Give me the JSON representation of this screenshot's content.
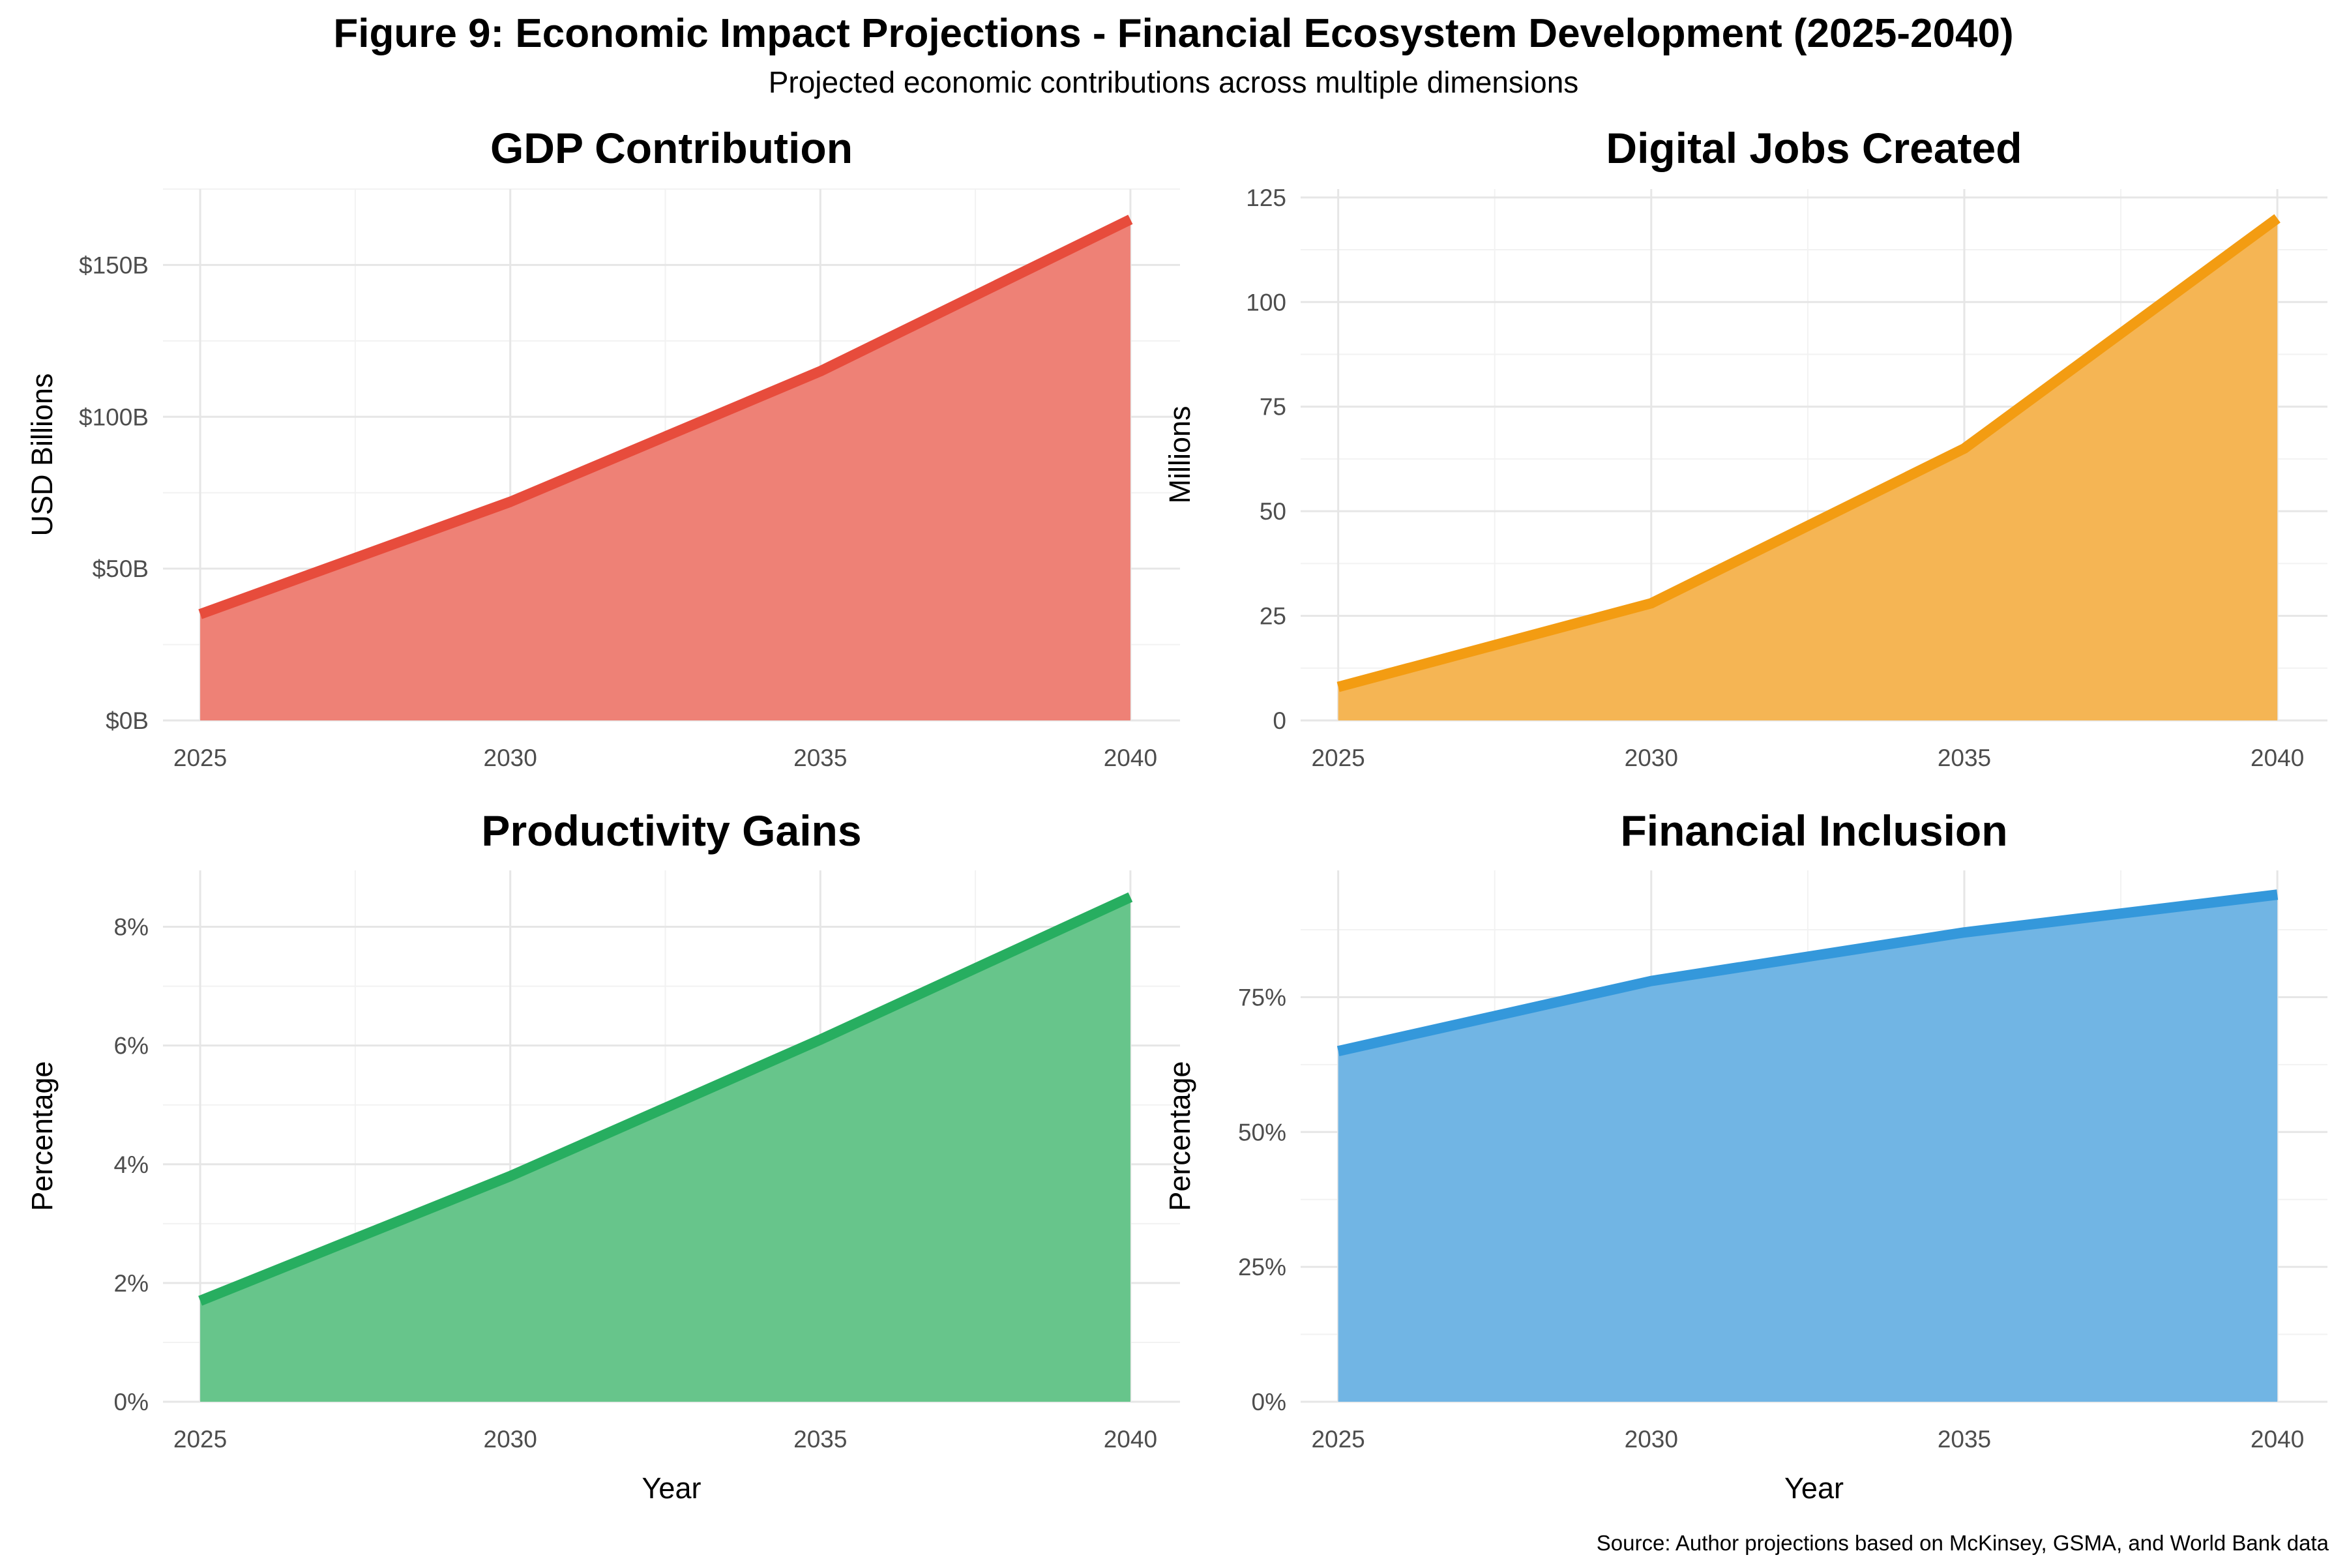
{
  "figure": {
    "title": "Figure 9: Economic Impact Projections - Financial Ecosystem Development (2025-2040)",
    "subtitle": "Projected economic contributions across multiple dimensions",
    "caption": "Source: Author projections based on McKinsey, GSMA, and World Bank data"
  },
  "chart_data": [
    {
      "type": "area",
      "title": "GDP Contribution",
      "xlabel": "",
      "ylabel": "USD Billions",
      "x": [
        2025,
        2030,
        2035,
        2040
      ],
      "values": [
        35,
        72,
        115,
        165
      ],
      "xlim": [
        2024.4,
        2040.8
      ],
      "ylim": [
        0,
        175
      ],
      "yticks": [
        0,
        50,
        100,
        150
      ],
      "ytick_labels": [
        "$0B",
        "$50B",
        "$100B",
        "$150B"
      ],
      "xticks": [
        2025,
        2030,
        2035,
        2040
      ],
      "xtick_labels": [
        "2025",
        "2030",
        "2035",
        "2040"
      ],
      "color": "#e74c3c",
      "fill_color": "#ee8176",
      "grid": true
    },
    {
      "type": "area",
      "title": "Digital Jobs Created",
      "xlabel": "",
      "ylabel": "Millions",
      "x": [
        2025,
        2030,
        2035,
        2040
      ],
      "values": [
        8,
        28,
        65,
        120
      ],
      "xlim": [
        2024.4,
        2040.8
      ],
      "ylim": [
        0,
        127
      ],
      "yticks": [
        0,
        25,
        50,
        75,
        100,
        125
      ],
      "ytick_labels": [
        "0",
        "25",
        "50",
        "75",
        "100",
        "125"
      ],
      "xticks": [
        2025,
        2030,
        2035,
        2040
      ],
      "xtick_labels": [
        "2025",
        "2030",
        "2035",
        "2040"
      ],
      "color": "#f39c12",
      "fill_color": "#f5b554",
      "grid": true
    },
    {
      "type": "area",
      "title": "Productivity Gains",
      "xlabel": "Year",
      "ylabel": "Percentage",
      "x": [
        2025,
        2030,
        2035,
        2040
      ],
      "values": [
        1.7,
        3.8,
        6.1,
        8.5
      ],
      "xlim": [
        2024.4,
        2040.8
      ],
      "ylim": [
        0,
        8.95
      ],
      "yticks": [
        0,
        2,
        4,
        6,
        8
      ],
      "ytick_labels": [
        "0%",
        "2%",
        "4%",
        "6%",
        "8%"
      ],
      "xticks": [
        2025,
        2030,
        2035,
        2040
      ],
      "xtick_labels": [
        "2025",
        "2030",
        "2035",
        "2040"
      ],
      "color": "#27ae60",
      "fill_color": "#67c58b",
      "grid": true
    },
    {
      "type": "area",
      "title": "Financial Inclusion",
      "xlabel": "Year",
      "ylabel": "Percentage",
      "x": [
        2025,
        2030,
        2035,
        2040
      ],
      "values": [
        65,
        78,
        87,
        94
      ],
      "xlim": [
        2024.4,
        2040.8
      ],
      "ylim": [
        0,
        98.5
      ],
      "yticks": [
        0,
        25,
        50,
        75
      ],
      "ytick_labels": [
        "0%",
        "25%",
        "50%",
        "75%"
      ],
      "xticks": [
        2025,
        2030,
        2035,
        2040
      ],
      "xtick_labels": [
        "2025",
        "2030",
        "2035",
        "2040"
      ],
      "color": "#3498db",
      "fill_color": "#71b5e4",
      "grid": true
    }
  ]
}
